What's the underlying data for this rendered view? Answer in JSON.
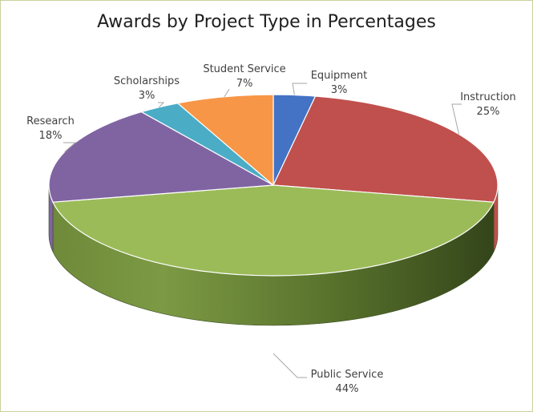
{
  "chart_data": {
    "type": "pie",
    "title": "Awards by Project Type in Percentages",
    "slices": [
      {
        "label": "Equipment",
        "value": 3,
        "value_label": "3%",
        "color": "#4472c4"
      },
      {
        "label": "Instruction",
        "value": 25,
        "value_label": "25%",
        "color": "#c0504d"
      },
      {
        "label": "Public Service",
        "value": 44,
        "value_label": "44%",
        "color": "#9bbb59"
      },
      {
        "label": "Research",
        "value": 18,
        "value_label": "18%",
        "color": "#8064a2"
      },
      {
        "label": "Scholarships",
        "value": 3,
        "value_label": "3%",
        "color": "#4bacc6"
      },
      {
        "label": "Student Service",
        "value": 7,
        "value_label": "7%",
        "color": "#f79646"
      }
    ],
    "style": "3d",
    "legend": "none",
    "data_labels": "outside with leader lines"
  }
}
